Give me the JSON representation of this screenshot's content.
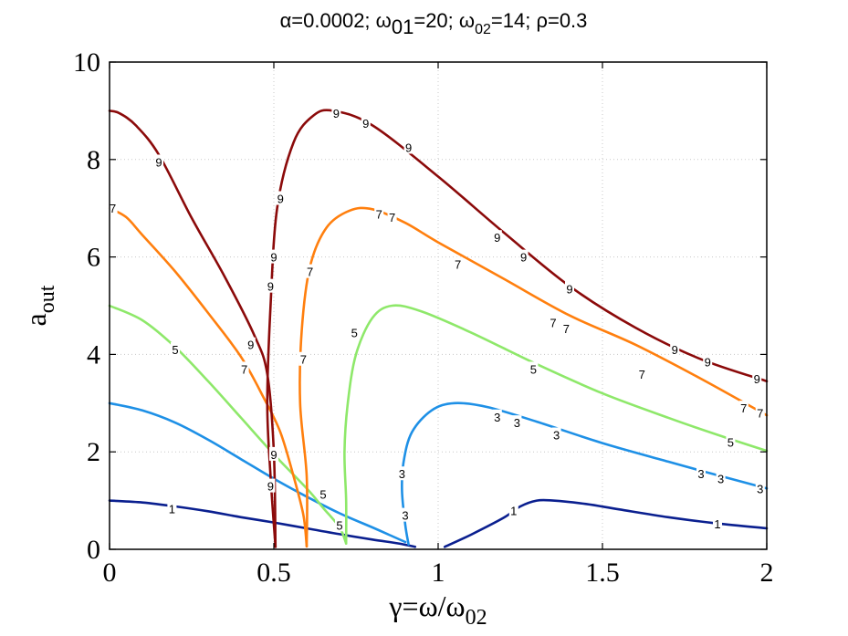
{
  "chart_data": {
    "type": "line",
    "title": {
      "alpha": "α=0.0002;",
      "w01_sym": "ω",
      "w01_sub": "01",
      "w01_val": "=20;",
      "w02_sym": "ω",
      "w02_sub": "02",
      "w02_val": "=14;",
      "rho": "ρ=0.3"
    },
    "xlabel": {
      "main": "γ=ω/ω",
      "sub": "02"
    },
    "ylabel": {
      "main": "a",
      "sub": "out"
    },
    "xlim": [
      0,
      2
    ],
    "ylim": [
      0,
      10
    ],
    "x_ticks": [
      {
        "v": 0,
        "label": "0"
      },
      {
        "v": 0.5,
        "label": "0.5"
      },
      {
        "v": 1,
        "label": "1"
      },
      {
        "v": 1.5,
        "label": "1.5"
      },
      {
        "v": 2,
        "label": "2"
      }
    ],
    "y_ticks": [
      {
        "v": 0,
        "label": "0"
      },
      {
        "v": 2,
        "label": "2"
      },
      {
        "v": 4,
        "label": "4"
      },
      {
        "v": 6,
        "label": "6"
      },
      {
        "v": 8,
        "label": "8"
      },
      {
        "v": 10,
        "label": "10"
      }
    ],
    "grid": true,
    "series": [
      {
        "name": "1",
        "color": "#0a1f8f",
        "segments": [
          [
            [
              0,
              1.0
            ],
            [
              0.1,
              0.96
            ],
            [
              0.2,
              0.88
            ],
            [
              0.3,
              0.78
            ],
            [
              0.4,
              0.66
            ],
            [
              0.5,
              0.55
            ],
            [
              0.6,
              0.43
            ],
            [
              0.7,
              0.31
            ],
            [
              0.8,
              0.2
            ],
            [
              0.88,
              0.12
            ],
            [
              0.93,
              0.05
            ]
          ],
          [
            [
              1.02,
              0.05
            ],
            [
              1.1,
              0.3
            ],
            [
              1.2,
              0.65
            ],
            [
              1.25,
              0.88
            ],
            [
              1.3,
              1.0
            ],
            [
              1.35,
              1.0
            ],
            [
              1.45,
              0.93
            ],
            [
              1.55,
              0.82
            ],
            [
              1.7,
              0.66
            ],
            [
              1.85,
              0.53
            ],
            [
              2.0,
              0.43
            ]
          ]
        ],
        "labels": [
          {
            "x": 0.19,
            "y": 0.83,
            "t": "1"
          },
          {
            "x": 1.23,
            "y": 0.8,
            "t": "1"
          },
          {
            "x": 1.85,
            "y": 0.52,
            "t": "1"
          }
        ]
      },
      {
        "name": "3",
        "color": "#1e90e6",
        "segments": [
          [
            [
              0,
              3.0
            ],
            [
              0.1,
              2.85
            ],
            [
              0.2,
              2.6
            ],
            [
              0.3,
              2.25
            ],
            [
              0.4,
              1.85
            ],
            [
              0.5,
              1.45
            ],
            [
              0.6,
              1.08
            ],
            [
              0.7,
              0.74
            ],
            [
              0.8,
              0.45
            ],
            [
              0.85,
              0.3
            ],
            [
              0.9,
              0.15
            ]
          ],
          [
            [
              0.91,
              0.1
            ],
            [
              0.9,
              0.5
            ],
            [
              0.89,
              1.2
            ],
            [
              0.895,
              1.8
            ],
            [
              0.92,
              2.4
            ],
            [
              0.98,
              2.85
            ],
            [
              1.05,
              3.0
            ],
            [
              1.15,
              2.92
            ],
            [
              1.3,
              2.62
            ],
            [
              1.5,
              2.18
            ],
            [
              1.7,
              1.8
            ],
            [
              1.85,
              1.52
            ],
            [
              2.0,
              1.25
            ]
          ]
        ],
        "labels": [
          {
            "x": 0.89,
            "y": 1.55,
            "t": "3"
          },
          {
            "x": 0.9,
            "y": 0.7,
            "t": "3"
          },
          {
            "x": 1.18,
            "y": 2.72,
            "t": "3"
          },
          {
            "x": 1.24,
            "y": 2.6,
            "t": "3"
          },
          {
            "x": 1.36,
            "y": 2.35,
            "t": "3"
          },
          {
            "x": 1.8,
            "y": 1.55,
            "t": "3"
          },
          {
            "x": 1.86,
            "y": 1.45,
            "t": "3"
          },
          {
            "x": 1.98,
            "y": 1.25,
            "t": "3"
          }
        ]
      },
      {
        "name": "5",
        "color": "#8ee86a",
        "segments": [
          [
            [
              0,
              5.0
            ],
            [
              0.1,
              4.7
            ],
            [
              0.2,
              4.15
            ],
            [
              0.3,
              3.45
            ],
            [
              0.4,
              2.7
            ],
            [
              0.5,
              1.95
            ],
            [
              0.6,
              1.25
            ],
            [
              0.65,
              0.85
            ],
            [
              0.7,
              0.45
            ],
            [
              0.72,
              0.12
            ]
          ],
          [
            [
              0.72,
              0.12
            ],
            [
              0.72,
              1.0
            ],
            [
              0.715,
              2.0
            ],
            [
              0.725,
              3.0
            ],
            [
              0.75,
              4.0
            ],
            [
              0.8,
              4.75
            ],
            [
              0.86,
              5.0
            ],
            [
              0.95,
              4.88
            ],
            [
              1.1,
              4.45
            ],
            [
              1.3,
              3.8
            ],
            [
              1.5,
              3.2
            ],
            [
              1.7,
              2.7
            ],
            [
              1.85,
              2.35
            ],
            [
              2.0,
              2.02
            ]
          ]
        ],
        "labels": [
          {
            "x": 0.2,
            "y": 4.1,
            "t": "5"
          },
          {
            "x": 0.65,
            "y": 1.13,
            "t": "5"
          },
          {
            "x": 0.7,
            "y": 0.5,
            "t": "5"
          },
          {
            "x": 0.745,
            "y": 4.45,
            "t": "5"
          },
          {
            "x": 1.29,
            "y": 3.7,
            "t": "5"
          },
          {
            "x": 1.89,
            "y": 2.2,
            "t": "5"
          }
        ]
      },
      {
        "name": "7",
        "color": "#ff7f0e",
        "segments": [
          [
            [
              0,
              7.0
            ],
            [
              0.05,
              6.82
            ],
            [
              0.1,
              6.45
            ],
            [
              0.2,
              5.7
            ],
            [
              0.3,
              4.85
            ],
            [
              0.4,
              3.95
            ],
            [
              0.47,
              3.1
            ],
            [
              0.52,
              2.4
            ],
            [
              0.56,
              1.5
            ],
            [
              0.59,
              0.7
            ],
            [
              0.6,
              0.06
            ]
          ],
          [
            [
              0.6,
              0.06
            ],
            [
              0.6,
              1.5
            ],
            [
              0.58,
              3.0
            ],
            [
              0.585,
              4.5
            ],
            [
              0.61,
              5.8
            ],
            [
              0.66,
              6.6
            ],
            [
              0.73,
              6.95
            ],
            [
              0.8,
              6.98
            ],
            [
              0.9,
              6.7
            ],
            [
              1.0,
              6.3
            ],
            [
              1.2,
              5.55
            ],
            [
              1.4,
              4.8
            ],
            [
              1.6,
              4.2
            ],
            [
              1.8,
              3.5
            ],
            [
              2.0,
              2.75
            ]
          ]
        ],
        "labels": [
          {
            "x": 0.01,
            "y": 7.0,
            "t": "7"
          },
          {
            "x": 0.41,
            "y": 3.7,
            "t": "7"
          },
          {
            "x": 0.59,
            "y": 3.9,
            "t": "7"
          },
          {
            "x": 0.61,
            "y": 5.7,
            "t": "7"
          },
          {
            "x": 0.82,
            "y": 6.88,
            "t": "7"
          },
          {
            "x": 0.86,
            "y": 6.82,
            "t": "7"
          },
          {
            "x": 1.06,
            "y": 5.85,
            "t": "7"
          },
          {
            "x": 1.35,
            "y": 4.65,
            "t": "7"
          },
          {
            "x": 1.39,
            "y": 4.53,
            "t": "7"
          },
          {
            "x": 1.62,
            "y": 3.6,
            "t": "7"
          },
          {
            "x": 1.93,
            "y": 2.9,
            "t": "7"
          },
          {
            "x": 1.98,
            "y": 2.8,
            "t": "7"
          }
        ]
      },
      {
        "name": "9",
        "color": "#8b0a0a",
        "segments": [
          [
            [
              0,
              9.0
            ],
            [
              0.03,
              8.95
            ],
            [
              0.08,
              8.7
            ],
            [
              0.15,
              8.1
            ],
            [
              0.25,
              6.8
            ],
            [
              0.35,
              5.6
            ],
            [
              0.44,
              4.4
            ],
            [
              0.48,
              3.6
            ],
            [
              0.5,
              2.0
            ],
            [
              0.505,
              0.05
            ]
          ],
          [
            [
              0.505,
              0.05
            ],
            [
              0.49,
              1.5
            ],
            [
              0.48,
              3.0
            ],
            [
              0.49,
              5.0
            ],
            [
              0.51,
              7.0
            ],
            [
              0.56,
              8.35
            ],
            [
              0.62,
              8.9
            ],
            [
              0.68,
              9.0
            ],
            [
              0.8,
              8.7
            ],
            [
              1.0,
              7.65
            ],
            [
              1.2,
              6.5
            ],
            [
              1.4,
              5.4
            ],
            [
              1.6,
              4.55
            ],
            [
              1.8,
              3.9
            ],
            [
              2.0,
              3.45
            ]
          ]
        ],
        "labels": [
          {
            "x": 0.15,
            "y": 7.95,
            "t": "9"
          },
          {
            "x": 0.43,
            "y": 4.2,
            "t": "9"
          },
          {
            "x": 0.49,
            "y": 1.3,
            "t": "9"
          },
          {
            "x": 0.5,
            "y": 1.95,
            "t": "9"
          },
          {
            "x": 0.49,
            "y": 5.4,
            "t": "9"
          },
          {
            "x": 0.5,
            "y": 6.0,
            "t": "9"
          },
          {
            "x": 0.52,
            "y": 7.2,
            "t": "9"
          },
          {
            "x": 0.69,
            "y": 8.95,
            "t": "9"
          },
          {
            "x": 0.78,
            "y": 8.75,
            "t": "9"
          },
          {
            "x": 0.91,
            "y": 8.25,
            "t": "9"
          },
          {
            "x": 1.18,
            "y": 6.4,
            "t": "9"
          },
          {
            "x": 1.26,
            "y": 6.0,
            "t": "9"
          },
          {
            "x": 1.4,
            "y": 5.35,
            "t": "9"
          },
          {
            "x": 1.72,
            "y": 4.1,
            "t": "9"
          },
          {
            "x": 1.82,
            "y": 3.85,
            "t": "9"
          },
          {
            "x": 1.97,
            "y": 3.5,
            "t": "9"
          }
        ]
      }
    ]
  }
}
